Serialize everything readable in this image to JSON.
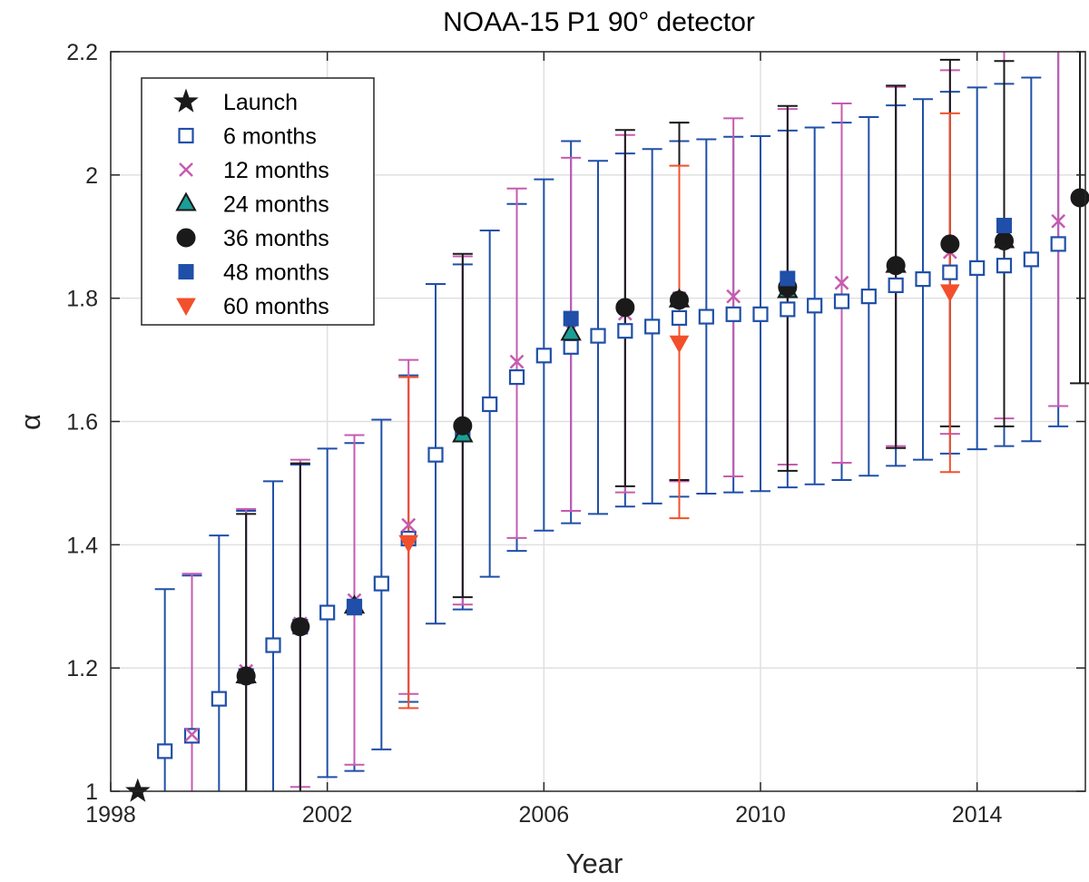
{
  "chart_data": {
    "type": "scatter",
    "title": "NOAA-15 P1 90° detector",
    "xlabel": "Year",
    "ylabel": "α",
    "xlim": [
      1998,
      2016
    ],
    "ylim": [
      1.0,
      2.2
    ],
    "xticks": [
      1998,
      2002,
      2006,
      2010,
      2014
    ],
    "yticks": [
      1.0,
      1.2,
      1.4,
      1.6,
      1.8,
      2.0,
      2.2
    ],
    "ytick_labels": [
      "1",
      "1.2",
      "1.4",
      "1.6",
      "1.8",
      "2",
      "2.2"
    ],
    "grid": true,
    "legend_position": "top-left",
    "colors": {
      "blue": "#1f4fa8",
      "magenta": "#c65bb0",
      "black": "#1a1a1a",
      "orange": "#f2502c",
      "teal": "#1a9f96",
      "grid": "#e0e0e0",
      "axis": "#262626"
    },
    "series": [
      {
        "name": "Launch",
        "marker": "star",
        "color": "#1a1a1a",
        "points": [
          {
            "x": 1998.5,
            "y": 1.0
          }
        ]
      },
      {
        "name": "6 months",
        "marker": "square-open",
        "color": "#1f4fa8",
        "points": [
          {
            "x": 1999.0,
            "y": 1.065,
            "lo": 1.0,
            "hi": 1.328
          },
          {
            "x": 1999.5,
            "y": 1.09,
            "lo": 1.0,
            "hi": 1.35
          },
          {
            "x": 2000.0,
            "y": 1.15,
            "lo": 1.0,
            "hi": 1.415
          },
          {
            "x": 2000.5,
            "y": 1.187,
            "lo": 1.0,
            "hi": 1.455
          },
          {
            "x": 2001.0,
            "y": 1.237,
            "lo": 1.0,
            "hi": 1.503
          },
          {
            "x": 2001.5,
            "y": 1.267,
            "lo": 1.0,
            "hi": 1.53
          },
          {
            "x": 2002.0,
            "y": 1.29,
            "lo": 1.023,
            "hi": 1.556
          },
          {
            "x": 2002.5,
            "y": 1.298,
            "lo": 1.033,
            "hi": 1.565
          },
          {
            "x": 2003.0,
            "y": 1.337,
            "lo": 1.068,
            "hi": 1.603
          },
          {
            "x": 2003.5,
            "y": 1.41,
            "lo": 1.145,
            "hi": 1.675
          },
          {
            "x": 2004.0,
            "y": 1.546,
            "lo": 1.272,
            "hi": 1.823
          },
          {
            "x": 2004.5,
            "y": 1.58,
            "lo": 1.295,
            "hi": 1.855
          },
          {
            "x": 2005.0,
            "y": 1.628,
            "lo": 1.348,
            "hi": 1.91
          },
          {
            "x": 2005.5,
            "y": 1.672,
            "lo": 1.39,
            "hi": 1.953
          },
          {
            "x": 2006.0,
            "y": 1.707,
            "lo": 1.423,
            "hi": 1.993
          },
          {
            "x": 2006.5,
            "y": 1.721,
            "lo": 1.435,
            "hi": 2.055
          },
          {
            "x": 2007.0,
            "y": 1.739,
            "lo": 1.45,
            "hi": 2.023
          },
          {
            "x": 2007.5,
            "y": 1.747,
            "lo": 1.462,
            "hi": 2.035
          },
          {
            "x": 2008.0,
            "y": 1.754,
            "lo": 1.467,
            "hi": 2.042
          },
          {
            "x": 2008.5,
            "y": 1.768,
            "lo": 1.478,
            "hi": 2.055
          },
          {
            "x": 2009.0,
            "y": 1.77,
            "lo": 1.483,
            "hi": 2.058
          },
          {
            "x": 2009.5,
            "y": 1.774,
            "lo": 1.485,
            "hi": 2.062
          },
          {
            "x": 2010.0,
            "y": 1.774,
            "lo": 1.487,
            "hi": 2.063
          },
          {
            "x": 2010.5,
            "y": 1.782,
            "lo": 1.493,
            "hi": 2.072
          },
          {
            "x": 2011.0,
            "y": 1.788,
            "lo": 1.498,
            "hi": 2.077
          },
          {
            "x": 2011.5,
            "y": 1.795,
            "lo": 1.505,
            "hi": 2.085
          },
          {
            "x": 2012.0,
            "y": 1.803,
            "lo": 1.512,
            "hi": 2.094
          },
          {
            "x": 2012.5,
            "y": 1.821,
            "lo": 1.528,
            "hi": 2.113
          },
          {
            "x": 2013.0,
            "y": 1.831,
            "lo": 1.538,
            "hi": 2.123
          },
          {
            "x": 2013.5,
            "y": 1.842,
            "lo": 1.548,
            "hi": 2.135
          },
          {
            "x": 2014.0,
            "y": 1.849,
            "lo": 1.555,
            "hi": 2.142
          },
          {
            "x": 2014.5,
            "y": 1.853,
            "lo": 1.56,
            "hi": 2.148
          },
          {
            "x": 2015.0,
            "y": 1.863,
            "lo": 1.568,
            "hi": 2.158
          },
          {
            "x": 2015.5,
            "y": 1.888,
            "lo": 1.592,
            "hi": 2.2
          }
        ]
      },
      {
        "name": "12 months",
        "marker": "x",
        "color": "#c65bb0",
        "points": [
          {
            "x": 1999.5,
            "y": 1.092,
            "lo": 1.0,
            "hi": 1.353
          },
          {
            "x": 2000.5,
            "y": 1.195,
            "lo": 1.0,
            "hi": 1.458
          },
          {
            "x": 2001.5,
            "y": 1.272,
            "lo": 1.007,
            "hi": 1.538
          },
          {
            "x": 2002.5,
            "y": 1.31,
            "lo": 1.043,
            "hi": 1.578
          },
          {
            "x": 2003.5,
            "y": 1.432,
            "lo": 1.158,
            "hi": 1.7
          },
          {
            "x": 2004.5,
            "y": 1.585,
            "lo": 1.303,
            "hi": 1.868
          },
          {
            "x": 2005.5,
            "y": 1.697,
            "lo": 1.411,
            "hi": 1.978
          },
          {
            "x": 2006.5,
            "y": 1.748,
            "lo": 1.455,
            "hi": 2.028
          },
          {
            "x": 2007.5,
            "y": 1.775,
            "lo": 1.485,
            "hi": 2.065
          },
          {
            "x": 2008.5,
            "y": 1.8,
            "lo": 1.503,
            "hi": 2.085
          },
          {
            "x": 2009.5,
            "y": 1.803,
            "lo": 1.511,
            "hi": 2.092
          },
          {
            "x": 2010.5,
            "y": 1.818,
            "lo": 1.53,
            "hi": 2.107
          },
          {
            "x": 2011.5,
            "y": 1.825,
            "lo": 1.533,
            "hi": 2.116
          },
          {
            "x": 2012.5,
            "y": 1.853,
            "lo": 1.56,
            "hi": 2.143
          },
          {
            "x": 2013.5,
            "y": 1.875,
            "lo": 1.58,
            "hi": 2.17
          },
          {
            "x": 2014.5,
            "y": 1.9,
            "lo": 1.605,
            "hi": 2.2
          },
          {
            "x": 2015.5,
            "y": 1.925,
            "lo": 1.625,
            "hi": 2.2
          }
        ]
      },
      {
        "name": "24 months",
        "marker": "triangle-up",
        "color": "#1a9f96",
        "points": [
          {
            "x": 2000.5,
            "y": 1.187
          },
          {
            "x": 2002.5,
            "y": 1.3
          },
          {
            "x": 2004.5,
            "y": 1.578
          },
          {
            "x": 2006.5,
            "y": 1.743
          },
          {
            "x": 2008.5,
            "y": 1.797
          },
          {
            "x": 2010.5,
            "y": 1.812
          },
          {
            "x": 2012.5,
            "y": 1.853
          },
          {
            "x": 2014.5,
            "y": 1.893
          }
        ]
      },
      {
        "name": "36 months",
        "marker": "circle",
        "color": "#1a1a1a",
        "points": [
          {
            "x": 2000.5,
            "y": 1.187,
            "lo": 1.0,
            "hi": 1.45
          },
          {
            "x": 2001.5,
            "y": 1.267,
            "lo": 1.0,
            "hi": 1.532
          },
          {
            "x": 2004.5,
            "y": 1.593,
            "lo": 1.315,
            "hi": 1.872
          },
          {
            "x": 2007.5,
            "y": 1.785,
            "lo": 1.495,
            "hi": 2.073
          },
          {
            "x": 2008.5,
            "y": 1.797,
            "lo": 1.505,
            "hi": 2.085
          },
          {
            "x": 2010.5,
            "y": 1.818,
            "lo": 1.52,
            "hi": 2.112
          },
          {
            "x": 2012.5,
            "y": 1.853,
            "lo": 1.557,
            "hi": 2.145
          },
          {
            "x": 2013.5,
            "y": 1.888,
            "lo": 1.592,
            "hi": 2.187
          },
          {
            "x": 2014.5,
            "y": 1.893,
            "lo": 1.592,
            "hi": 2.185
          },
          {
            "x": 2015.9,
            "y": 1.963,
            "lo": 1.662,
            "hi": 2.2
          }
        ]
      },
      {
        "name": "48 months",
        "marker": "square-filled",
        "color": "#1f4fa8",
        "points": [
          {
            "x": 2002.5,
            "y": 1.3
          },
          {
            "x": 2006.5,
            "y": 1.767
          },
          {
            "x": 2010.5,
            "y": 1.832
          },
          {
            "x": 2014.5,
            "y": 1.918
          }
        ]
      },
      {
        "name": "60 months",
        "marker": "triangle-down",
        "color": "#f2502c",
        "points": [
          {
            "x": 2003.5,
            "y": 1.403,
            "lo": 1.135,
            "hi": 1.672
          },
          {
            "x": 2008.5,
            "y": 1.727,
            "lo": 1.443,
            "hi": 2.015
          },
          {
            "x": 2013.5,
            "y": 1.81,
            "lo": 1.518,
            "hi": 2.1
          }
        ]
      }
    ]
  }
}
